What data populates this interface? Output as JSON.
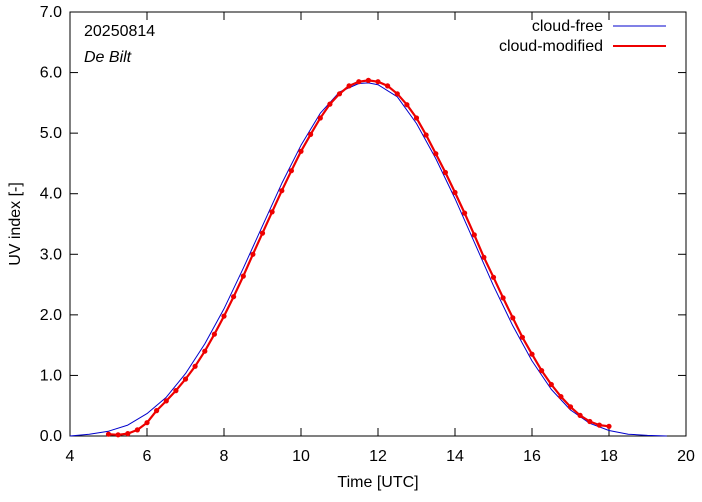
{
  "chart_data": {
    "type": "line",
    "date_label": "20250814",
    "location_label": "De Bilt",
    "xlabel": "Time  [UTC]",
    "ylabel": "UV index  [-]",
    "xlim": [
      4,
      20
    ],
    "ylim": [
      0,
      7
    ],
    "xticks": [
      4,
      6,
      8,
      10,
      12,
      14,
      16,
      18,
      20
    ],
    "yticks": [
      "0.0",
      "1.0",
      "2.0",
      "3.0",
      "4.0",
      "5.0",
      "6.0",
      "7.0"
    ],
    "legend_position": "top-right",
    "grid": false,
    "series": [
      {
        "name": "cloud-free",
        "color": "#0000cc",
        "x": [
          4.0,
          4.5,
          5.0,
          5.5,
          6.0,
          6.5,
          7.0,
          7.5,
          8.0,
          8.5,
          9.0,
          9.5,
          10.0,
          10.5,
          11.0,
          11.5,
          11.75,
          12.0,
          12.5,
          13.0,
          13.5,
          14.0,
          14.5,
          15.0,
          15.5,
          16.0,
          16.5,
          17.0,
          17.5,
          18.0,
          18.5,
          19.0,
          19.5
        ],
        "y": [
          0.0,
          0.03,
          0.08,
          0.18,
          0.37,
          0.64,
          1.03,
          1.52,
          2.1,
          2.77,
          3.47,
          4.17,
          4.8,
          5.33,
          5.68,
          5.82,
          5.83,
          5.8,
          5.6,
          5.16,
          4.58,
          3.92,
          3.2,
          2.48,
          1.82,
          1.24,
          0.77,
          0.43,
          0.21,
          0.09,
          0.03,
          0.01,
          0.0
        ]
      },
      {
        "name": "cloud-modified",
        "color": "#ee0000",
        "x": [
          5.0,
          5.25,
          5.5,
          5.75,
          6.0,
          6.25,
          6.5,
          6.75,
          7.0,
          7.25,
          7.5,
          7.75,
          8.0,
          8.25,
          8.5,
          8.75,
          9.0,
          9.25,
          9.5,
          9.75,
          10.0,
          10.25,
          10.5,
          10.75,
          11.0,
          11.25,
          11.5,
          11.75,
          12.0,
          12.25,
          12.5,
          12.75,
          13.0,
          13.25,
          13.5,
          13.75,
          14.0,
          14.25,
          14.5,
          14.75,
          15.0,
          15.25,
          15.5,
          15.75,
          16.0,
          16.25,
          16.5,
          16.75,
          17.0,
          17.25,
          17.5,
          17.75,
          18.0
        ],
        "y": [
          0.03,
          0.02,
          0.04,
          0.1,
          0.22,
          0.42,
          0.58,
          0.75,
          0.94,
          1.15,
          1.4,
          1.68,
          1.98,
          2.3,
          2.64,
          3.0,
          3.35,
          3.7,
          4.05,
          4.38,
          4.7,
          4.98,
          5.25,
          5.48,
          5.65,
          5.78,
          5.85,
          5.87,
          5.85,
          5.78,
          5.65,
          5.47,
          5.25,
          4.97,
          4.66,
          4.35,
          4.02,
          3.68,
          3.32,
          2.95,
          2.62,
          2.28,
          1.95,
          1.63,
          1.35,
          1.08,
          0.85,
          0.65,
          0.48,
          0.34,
          0.24,
          0.18,
          0.16
        ]
      }
    ]
  }
}
